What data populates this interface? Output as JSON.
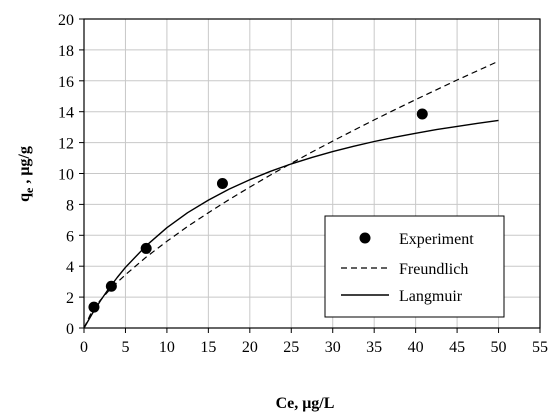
{
  "chart_data": {
    "type": "scatter",
    "xlabel": "Ce, μg/L",
    "ylabel_main": "q",
    "ylabel_sub": "e",
    "ylabel_rest": " , μg/g",
    "xlim": [
      0,
      55
    ],
    "ylim": [
      0,
      20
    ],
    "x_ticks": [
      0,
      5,
      10,
      15,
      20,
      25,
      30,
      35,
      40,
      45,
      50,
      55
    ],
    "y_ticks": [
      0,
      2,
      4,
      6,
      8,
      10,
      12,
      14,
      16,
      18,
      20
    ],
    "grid": true,
    "legend_position": "bottom-right",
    "series": [
      {
        "name": "Experiment",
        "kind": "points",
        "x": [
          1.2,
          3.3,
          7.5,
          16.7,
          40.8
        ],
        "y": [
          1.35,
          2.7,
          5.15,
          9.35,
          13.85
        ]
      },
      {
        "name": "Freundlich",
        "kind": "dashed-line",
        "x": [
          0,
          1,
          2,
          3,
          4,
          5,
          7.5,
          10,
          12.5,
          15,
          17.5,
          20,
          22.5,
          25,
          27.5,
          30,
          32.5,
          35,
          37.5,
          40,
          42.5,
          45,
          47.5,
          50
        ],
        "y": [
          0,
          1.13,
          1.82,
          2.42,
          2.95,
          3.45,
          4.59,
          5.61,
          6.57,
          7.46,
          8.31,
          9.12,
          9.9,
          10.66,
          11.39,
          12.1,
          12.79,
          13.47,
          14.13,
          14.78,
          15.42,
          16.05,
          16.66,
          17.27
        ]
      },
      {
        "name": "Langmuir",
        "kind": "solid-line",
        "x": [
          0,
          1,
          2,
          3,
          4,
          5,
          7.5,
          10,
          12.5,
          15,
          17.5,
          20,
          22.5,
          25,
          27.5,
          30,
          32.5,
          35,
          37.5,
          40,
          42.5,
          45,
          47.5,
          50
        ],
        "y": [
          0,
          0.93,
          1.78,
          2.56,
          3.27,
          3.93,
          5.33,
          6.49,
          7.46,
          8.28,
          8.99,
          9.6,
          10.14,
          10.62,
          11.04,
          11.42,
          11.76,
          12.07,
          12.35,
          12.6,
          12.84,
          13.05,
          13.25,
          13.44
        ]
      }
    ]
  }
}
